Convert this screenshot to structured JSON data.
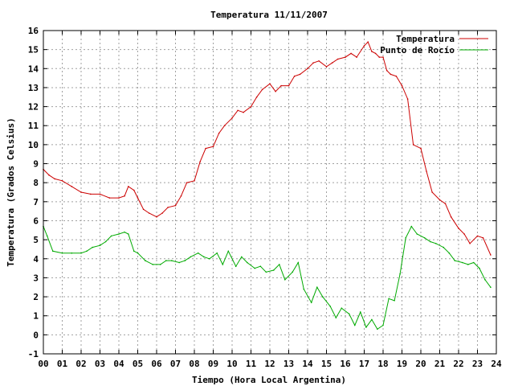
{
  "chart_data": {
    "type": "line",
    "title": "Temperatura 11/11/2007",
    "xlabel": "Tiempo (Hora Local Argentina)",
    "ylabel": "Temperatura (Grados Celsius)",
    "xlim": [
      0,
      24
    ],
    "ylim": [
      -1,
      16
    ],
    "x_tick_labels": [
      "00",
      "01",
      "02",
      "03",
      "04",
      "05",
      "06",
      "07",
      "08",
      "09",
      "10",
      "11",
      "12",
      "13",
      "14",
      "15",
      "16",
      "17",
      "18",
      "19",
      "20",
      "21",
      "22",
      "23",
      "24"
    ],
    "y_tick_labels": [
      "-1",
      "0",
      "1",
      "2",
      "3",
      "4",
      "5",
      "6",
      "7",
      "8",
      "9",
      "10",
      "11",
      "12",
      "13",
      "14",
      "15",
      "16"
    ],
    "grid": true,
    "legend_position": "top-right",
    "series": [
      {
        "name": "Temperatura",
        "color": "#cc0000",
        "x": [
          0,
          0.3,
          0.6,
          1.0,
          1.5,
          2.0,
          2.5,
          3.0,
          3.5,
          4.0,
          4.3,
          4.5,
          4.8,
          5.0,
          5.3,
          5.6,
          6.0,
          6.3,
          6.6,
          7.0,
          7.3,
          7.6,
          8.0,
          8.3,
          8.6,
          9.0,
          9.3,
          9.6,
          10.0,
          10.3,
          10.6,
          11.0,
          11.3,
          11.6,
          12.0,
          12.3,
          12.6,
          13.0,
          13.3,
          13.6,
          14.0,
          14.3,
          14.6,
          15.0,
          15.3,
          15.6,
          16.0,
          16.3,
          16.6,
          17.0,
          17.2,
          17.4,
          17.6,
          17.8,
          18.0,
          18.2,
          18.4,
          18.7,
          19.0,
          19.3,
          19.6,
          20.0,
          20.3,
          20.6,
          21.0,
          21.3,
          21.6,
          22.0,
          22.3,
          22.6,
          23.0,
          23.3,
          23.7
        ],
        "values": [
          8.7,
          8.4,
          8.2,
          8.1,
          7.8,
          7.5,
          7.4,
          7.4,
          7.2,
          7.2,
          7.3,
          7.8,
          7.6,
          7.2,
          6.6,
          6.4,
          6.2,
          6.4,
          6.7,
          6.8,
          7.3,
          8.0,
          8.1,
          9.1,
          9.8,
          9.9,
          10.6,
          11.0,
          11.4,
          11.8,
          11.7,
          12.0,
          12.5,
          12.9,
          13.2,
          12.8,
          13.1,
          13.1,
          13.6,
          13.7,
          14.0,
          14.3,
          14.4,
          14.1,
          14.3,
          14.5,
          14.6,
          14.8,
          14.6,
          15.2,
          15.4,
          14.9,
          14.8,
          14.6,
          14.6,
          13.9,
          13.7,
          13.6,
          13.1,
          12.4,
          10.0,
          9.8,
          8.6,
          7.5,
          7.1,
          6.9,
          6.2,
          5.6,
          5.3,
          4.8,
          5.2,
          5.1,
          4.2
        ]
      },
      {
        "name": "Punto de Rocío",
        "color": "#00aa00",
        "x": [
          0,
          0.2,
          0.5,
          1.0,
          1.5,
          2.0,
          2.3,
          2.6,
          3.0,
          3.3,
          3.6,
          4.0,
          4.3,
          4.5,
          4.8,
          5.0,
          5.4,
          5.8,
          6.2,
          6.5,
          6.8,
          7.2,
          7.5,
          7.8,
          8.2,
          8.5,
          8.8,
          9.2,
          9.5,
          9.8,
          10.2,
          10.5,
          10.8,
          11.2,
          11.5,
          11.8,
          12.2,
          12.5,
          12.8,
          13.2,
          13.5,
          13.8,
          14.2,
          14.5,
          14.8,
          15.2,
          15.5,
          15.8,
          16.2,
          16.5,
          16.8,
          17.1,
          17.4,
          17.7,
          18.0,
          18.3,
          18.6,
          18.9,
          19.2,
          19.5,
          19.8,
          20.2,
          20.5,
          20.8,
          21.2,
          21.5,
          21.8,
          22.2,
          22.5,
          22.8,
          23.1,
          23.4,
          23.7
        ],
        "values": [
          5.7,
          5.2,
          4.4,
          4.3,
          4.3,
          4.3,
          4.4,
          4.6,
          4.7,
          4.9,
          5.2,
          5.3,
          5.4,
          5.3,
          4.4,
          4.3,
          3.9,
          3.7,
          3.7,
          3.9,
          3.9,
          3.8,
          3.9,
          4.1,
          4.3,
          4.1,
          4.0,
          4.3,
          3.7,
          4.4,
          3.6,
          4.1,
          3.8,
          3.5,
          3.6,
          3.3,
          3.4,
          3.7,
          2.9,
          3.3,
          3.8,
          2.4,
          1.7,
          2.5,
          2.0,
          1.5,
          0.9,
          1.4,
          1.1,
          0.5,
          1.2,
          0.4,
          0.8,
          0.3,
          0.5,
          1.9,
          1.8,
          3.2,
          5.1,
          5.7,
          5.3,
          5.1,
          4.9,
          4.8,
          4.6,
          4.3,
          3.9,
          3.8,
          3.7,
          3.8,
          3.5,
          2.9,
          2.5
        ]
      }
    ]
  }
}
